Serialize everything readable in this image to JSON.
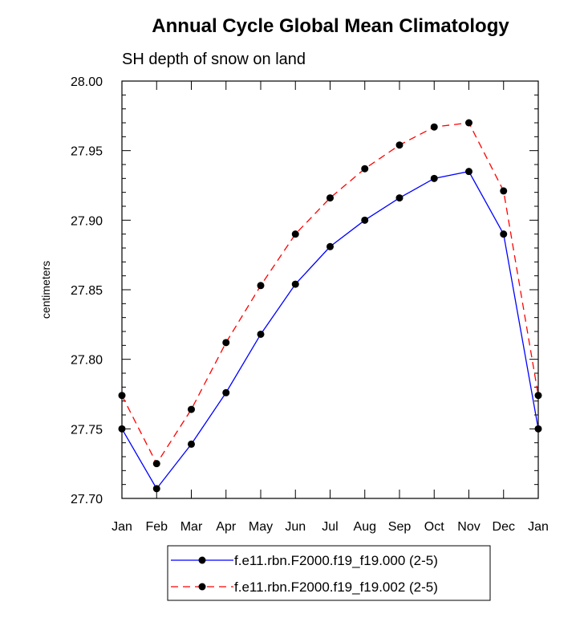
{
  "chart_data": {
    "type": "line",
    "title": "Annual Cycle Global Mean Climatology",
    "subtitle": "SH depth of snow on land",
    "xlabel": "",
    "ylabel": "centimeters",
    "categories": [
      "Jan",
      "Feb",
      "Mar",
      "Apr",
      "May",
      "Jun",
      "Jul",
      "Aug",
      "Sep",
      "Oct",
      "Nov",
      "Dec",
      "Jan"
    ],
    "ylim": [
      27.7,
      28.0
    ],
    "yticks": [
      "27.70",
      "27.75",
      "27.80",
      "27.85",
      "27.90",
      "27.95",
      "28.00"
    ],
    "grid": false,
    "legend_position": "bottom",
    "series": [
      {
        "name": "f.e11.rbn.F2000.f19_f19.000 (2-5)",
        "color": "#0000ff",
        "dash": "solid",
        "marker": "filled-circle",
        "values": [
          27.75,
          27.707,
          27.739,
          27.776,
          27.818,
          27.854,
          27.881,
          27.9,
          27.916,
          27.93,
          27.935,
          27.89,
          27.75
        ]
      },
      {
        "name": "f.e11.rbn.F2000.f19_f19.002 (2-5)",
        "color": "#ff0000",
        "dash": "dashed",
        "marker": "filled-circle",
        "values": [
          27.774,
          27.725,
          27.764,
          27.812,
          27.853,
          27.89,
          27.916,
          27.937,
          27.954,
          27.967,
          27.97,
          27.921,
          27.774
        ]
      }
    ]
  }
}
